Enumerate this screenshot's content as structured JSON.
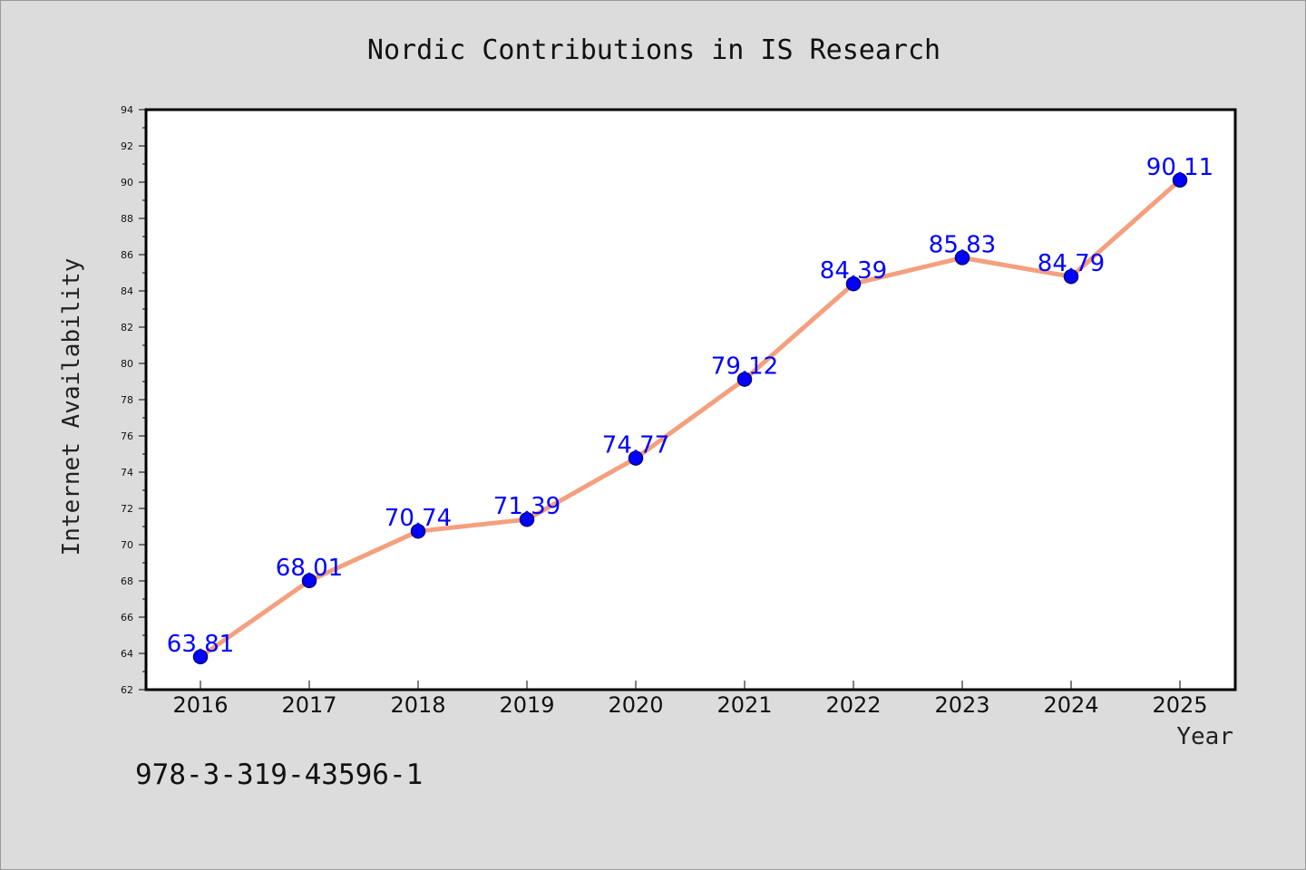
{
  "footer_text": "978-3-319-43596-1",
  "chart_data": {
    "type": "line",
    "title": "Nordic Contributions in IS Research",
    "xlabel": "Year",
    "ylabel": "Internet Availability",
    "categories": [
      "2016",
      "2017",
      "2018",
      "2019",
      "2020",
      "2021",
      "2022",
      "2023",
      "2024",
      "2025"
    ],
    "values": [
      63.81,
      68.01,
      70.74,
      71.39,
      74.77,
      79.12,
      84.39,
      85.83,
      84.79,
      90.11
    ],
    "data_labels": [
      "63.81",
      "68.01",
      "70.74",
      "71.39",
      "74.77",
      "79.12",
      "84.39",
      "85.83",
      "84.79",
      "90.11"
    ],
    "ylim": [
      62,
      94
    ],
    "yticks": [
      62,
      64,
      66,
      68,
      70,
      72,
      74,
      76,
      78,
      80,
      82,
      84,
      86,
      88,
      90,
      92,
      94
    ],
    "grid": false,
    "legend": "none",
    "colors": {
      "line": "#f4a07e",
      "marker": "#0000ff",
      "marker_edge": "#00007a",
      "data_label": "#0000ff",
      "plot_background": "#ffffff",
      "figure_background": "#dcdcdc"
    }
  }
}
